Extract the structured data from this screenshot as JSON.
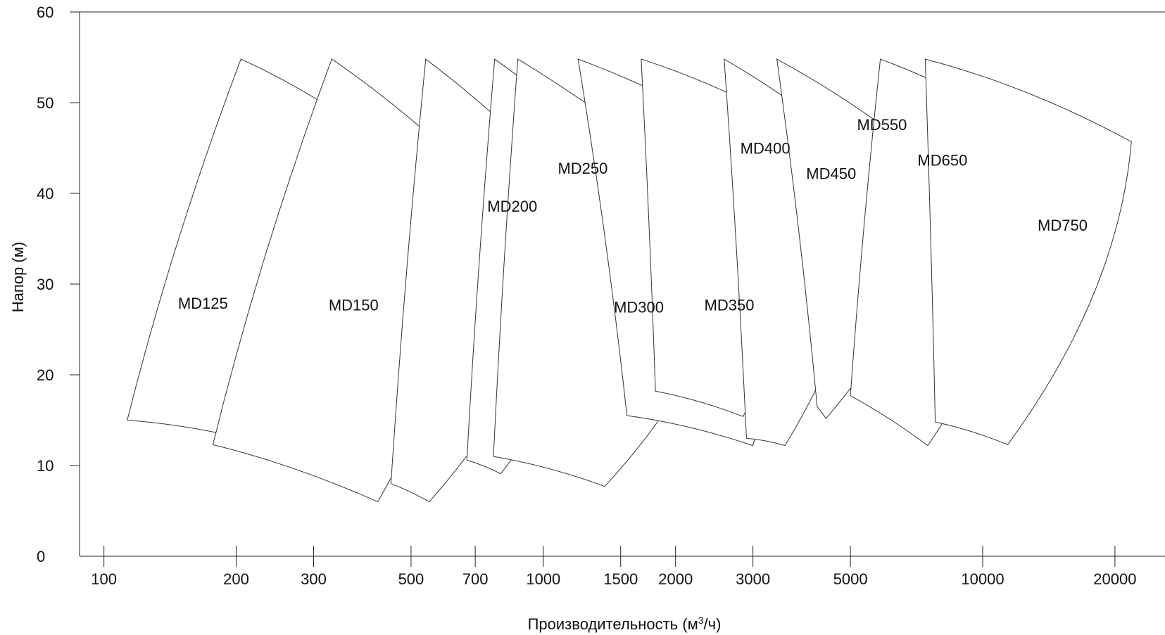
{
  "chart_data": {
    "type": "area",
    "title": "",
    "xlabel_main": "Производительность (м",
    "xlabel_sup": "3",
    "xlabel_tail": "/ч)",
    "ylabel": "Напор (м)",
    "x_scale": "log",
    "xlim": [
      88,
      26000
    ],
    "ylim": [
      0,
      60
    ],
    "x_ticks": [
      100,
      200,
      300,
      500,
      700,
      1000,
      1500,
      2000,
      3000,
      5000,
      10000,
      20000
    ],
    "x_tick_labels": [
      "100",
      "200",
      "300",
      "500",
      "700",
      "1000",
      "1500",
      "2000",
      "3000",
      "5000",
      "10000",
      "20000"
    ],
    "y_ticks": [
      0,
      10,
      20,
      30,
      40,
      50,
      60
    ],
    "y_tick_labels": [
      "0",
      "10",
      "20",
      "30",
      "40",
      "50",
      "60"
    ],
    "grid": false,
    "legend": "none",
    "series": [
      {
        "name": "MD125",
        "label_pos": [
          168,
          27.9
        ],
        "corners": {
          "bl": [
            113,
            15.0
          ],
          "tl": [
            205,
            54.8
          ],
          "tr": [
            410,
            46.2
          ],
          "br": [
            235,
            12.3
          ]
        }
      },
      {
        "name": "MD150",
        "label_pos": [
          370,
          27.7
        ],
        "corners": {
          "bl": [
            177,
            12.3
          ],
          "tl": [
            330,
            54.8
          ],
          "tr": [
            715,
            41.4
          ],
          "br": [
            420,
            6.0
          ]
        }
      },
      {
        "name": "MD200",
        "label_pos": [
          850,
          38.6
        ],
        "corners": {
          "bl": [
            450,
            8.0
          ],
          "tl": [
            540,
            54.8
          ],
          "tr": [
            1210,
            39.6
          ],
          "br": [
            550,
            6.0
          ]
        }
      },
      {
        "name": "MD250",
        "label_pos": [
          1230,
          42.8
        ],
        "corners": {
          "bl": [
            670,
            10.6
          ],
          "tl": [
            775,
            54.8
          ],
          "tr": [
            1590,
            42.0
          ],
          "br": [
            800,
            9.1
          ]
        }
      },
      {
        "name": "MD300",
        "label_pos": [
          1650,
          27.5
        ],
        "corners": {
          "bl": [
            770,
            11.0
          ],
          "tl": [
            875,
            54.8
          ],
          "tr": [
            2800,
            36.6
          ],
          "br": [
            1380,
            7.7
          ]
        }
      },
      {
        "name": "MD350",
        "label_pos": [
          2650,
          27.7
        ],
        "corners": {
          "bl": [
            1550,
            15.5
          ],
          "tl": [
            1200,
            54.8
          ],
          "tr": [
            3700,
            42.7
          ],
          "br": [
            3000,
            12.2
          ]
        }
      },
      {
        "name": "MD400",
        "label_pos": [
          3200,
          45.0
        ],
        "corners": {
          "bl": [
            1800,
            18.2
          ],
          "tl": [
            1670,
            54.8
          ],
          "tr": [
            4150,
            46.0
          ],
          "br": [
            2850,
            15.4
          ]
        }
      },
      {
        "name": "MD450",
        "label_pos": [
          4520,
          42.2
        ],
        "corners": {
          "bl": [
            2900,
            13.0
          ],
          "tl": [
            2580,
            54.8
          ],
          "tr": [
            5750,
            42.7
          ],
          "br": [
            3550,
            12.2
          ]
        }
      },
      {
        "name": "MD550",
        "label_pos": [
          5900,
          47.6
        ],
        "corners": {
          "bl": [
            4200,
            16.5
          ],
          "tl": [
            3400,
            54.8
          ],
          "tr": [
            8150,
            42.3
          ],
          "br": [
            4400,
            15.2
          ]
        }
      },
      {
        "name": "MD650",
        "label_pos": [
          8100,
          43.7
        ],
        "corners": {
          "bl": [
            5000,
            17.7
          ],
          "tl": [
            5850,
            54.8
          ],
          "tr": [
            13700,
            45.7
          ],
          "br": [
            7500,
            12.2
          ]
        }
      },
      {
        "name": "MD750",
        "label_pos": [
          15200,
          36.5
        ],
        "corners": {
          "bl": [
            7800,
            14.8
          ],
          "tl": [
            7400,
            54.8
          ],
          "tr": [
            21800,
            45.7
          ],
          "br": [
            11400,
            12.3
          ]
        }
      }
    ]
  }
}
